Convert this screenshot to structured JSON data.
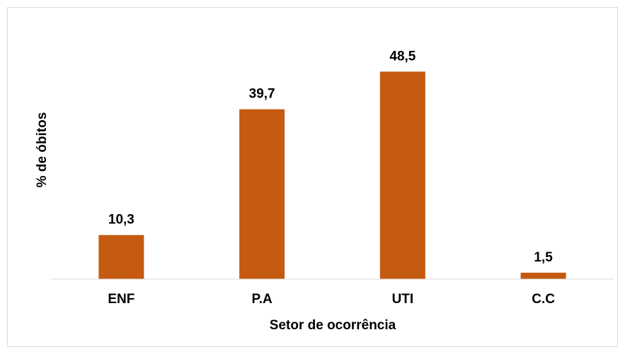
{
  "chart_data": {
    "type": "bar",
    "categories": [
      "ENF",
      "P.A",
      "UTI",
      "C.C"
    ],
    "values": [
      10.3,
      39.7,
      48.5,
      1.5
    ],
    "value_labels": [
      "10,3",
      "39,7",
      "48,5",
      "1,5"
    ],
    "color": "#c55a11",
    "ylim": [
      0,
      55
    ],
    "x_label": "Setor de ocorrência",
    "y_label": "% de óbitos"
  }
}
